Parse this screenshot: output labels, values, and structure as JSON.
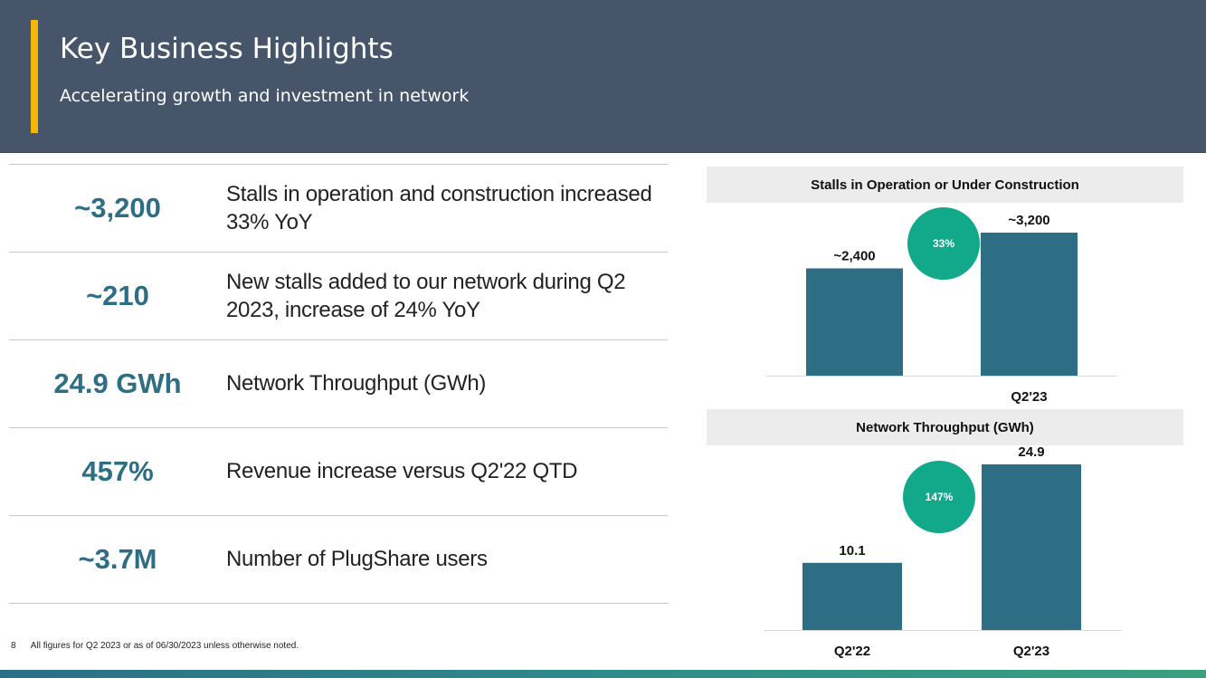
{
  "header": {
    "title": "Key Business Highlights",
    "subtitle": "Accelerating growth and investment in network"
  },
  "metrics": [
    {
      "value": "~3,200",
      "description": "Stalls in operation and construction increased 33% YoY"
    },
    {
      "value": "~210",
      "description": "New stalls added to our network during Q2 2023, increase of 24% YoY"
    },
    {
      "value": "24.9 GWh",
      "description": "Network Throughput (GWh)"
    },
    {
      "value": "457%",
      "description": "Revenue increase versus Q2'22 QTD"
    },
    {
      "value": "~3.7M",
      "description": "Number of PlugShare users"
    }
  ],
  "footer": {
    "page_number": "8",
    "note": "All figures for Q2 2023 or as of 06/30/2023 unless otherwise noted."
  },
  "colors": {
    "header_bg": "#465569",
    "accent": "#f2b705",
    "bar": "#2e6e84",
    "growth_circle": "#12a88a",
    "metric_value": "#2e6e84"
  },
  "chart_data": [
    {
      "type": "bar",
      "title": "Stalls in Operation or Under Construction",
      "categories": [
        "",
        "Q2'23"
      ],
      "values": [
        2400,
        3200
      ],
      "data_labels": [
        "~2,400",
        "~3,200"
      ],
      "growth_label": "33%",
      "ylim": [
        0,
        3600
      ]
    },
    {
      "type": "bar",
      "title": "Network Throughput (GWh)",
      "categories": [
        "Q2'22",
        "Q2'23"
      ],
      "values": [
        10.1,
        24.9
      ],
      "data_labels": [
        "10.1",
        "24.9"
      ],
      "growth_label": "147%",
      "ylim": [
        0,
        30
      ]
    }
  ]
}
